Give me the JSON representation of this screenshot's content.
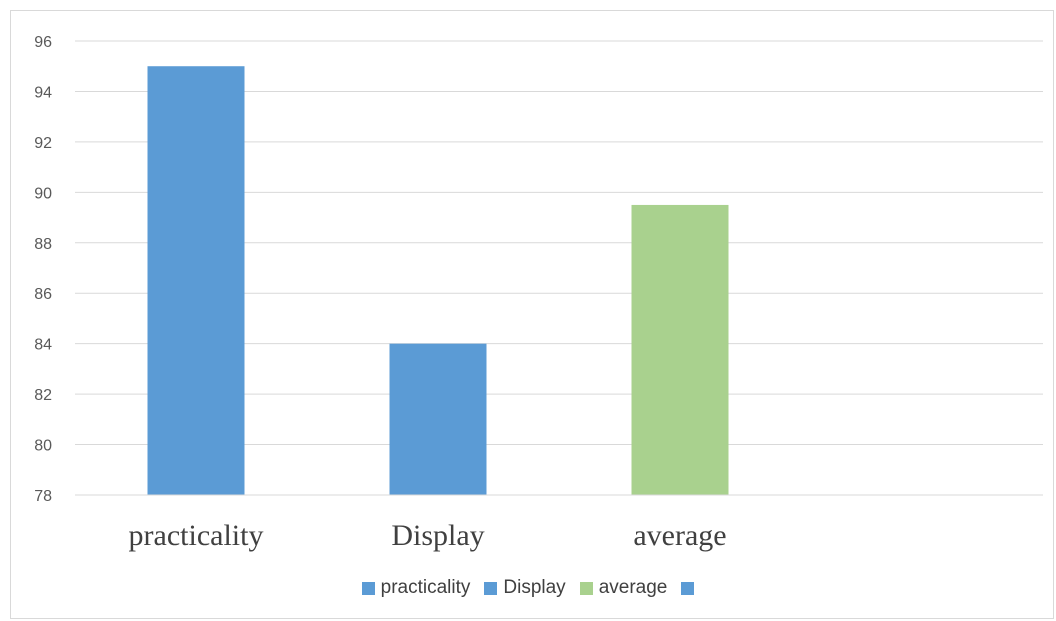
{
  "chart_data": {
    "type": "bar",
    "categories": [
      "practicality",
      "Display",
      "average"
    ],
    "values": [
      95,
      84,
      89.5
    ],
    "colors": [
      "#5b9bd5",
      "#5b9bd5",
      "#a9d18e"
    ],
    "ylim": [
      78,
      96
    ],
    "yticks": [
      78,
      80,
      82,
      84,
      86,
      88,
      90,
      92,
      94,
      96
    ],
    "grid": true,
    "legend": {
      "position": "bottom",
      "entries": [
        {
          "name": "practicality",
          "color": "#5b9bd5"
        },
        {
          "name": "Display",
          "color": "#5b9bd5"
        },
        {
          "name": "average",
          "color": "#a9d18e"
        },
        {
          "name": "",
          "color": "#5b9bd5"
        }
      ]
    }
  }
}
